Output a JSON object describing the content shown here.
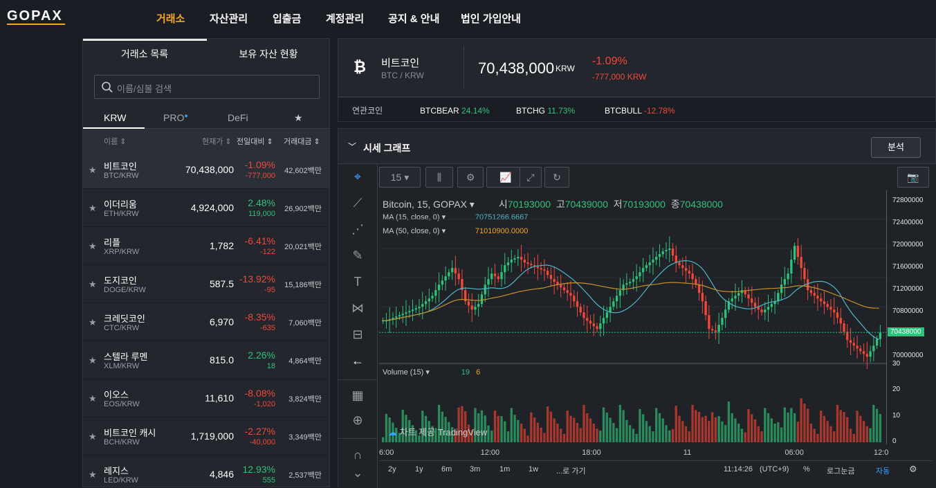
{
  "brand": "GOPAX",
  "nav": [
    "거래소",
    "자산관리",
    "입출금",
    "계정관리",
    "공지 & 안내",
    "법인 가입안내"
  ],
  "left": {
    "tabs": [
      "거래소 목록",
      "보유 자산 현황"
    ],
    "search_placeholder": "이름/심볼 검색",
    "subtabs": [
      "KRW",
      "PRO",
      "DeFi"
    ],
    "headers": {
      "name": "이름",
      "price": "현재가",
      "change": "전일대비",
      "volume": "거래대금"
    },
    "rows": [
      {
        "name": "비트코인",
        "sym": "BTC/KRW",
        "price": "70,438,000",
        "pct": "-1.09%",
        "chg": "-777,000",
        "vol": "42,602백만",
        "dir": "down"
      },
      {
        "name": "이더리움",
        "sym": "ETH/KRW",
        "price": "4,924,000",
        "pct": "2.48%",
        "chg": "119,000",
        "vol": "26,902백만",
        "dir": "up"
      },
      {
        "name": "리플",
        "sym": "XRP/KRW",
        "price": "1,782",
        "pct": "-6.41%",
        "chg": "-122",
        "vol": "20,021백만",
        "dir": "down"
      },
      {
        "name": "도지코인",
        "sym": "DOGE/KRW",
        "price": "587.5",
        "pct": "-13.92%",
        "chg": "-95",
        "vol": "15,186백만",
        "dir": "down"
      },
      {
        "name": "크레딧코인",
        "sym": "CTC/KRW",
        "price": "6,970",
        "pct": "-8.35%",
        "chg": "-635",
        "vol": "7,060백만",
        "dir": "down"
      },
      {
        "name": "스텔라 루멘",
        "sym": "XLM/KRW",
        "price": "815.0",
        "pct": "2.26%",
        "chg": "18",
        "vol": "4,864백만",
        "dir": "up"
      },
      {
        "name": "이오스",
        "sym": "EOS/KRW",
        "price": "11,610",
        "pct": "-8.08%",
        "chg": "-1,020",
        "vol": "3,824백만",
        "dir": "down"
      },
      {
        "name": "비트코인 캐시",
        "sym": "BCH/KRW",
        "price": "1,719,000",
        "pct": "-2.27%",
        "chg": "-40,000",
        "vol": "3,349백만",
        "dir": "down"
      },
      {
        "name": "레지스",
        "sym": "LED/KRW",
        "price": "4,846",
        "pct": "12.93%",
        "chg": "555",
        "vol": "2,537백만",
        "dir": "up"
      }
    ]
  },
  "header": {
    "name": "비트코인",
    "pair": "BTC / KRW",
    "price": "70,438,000",
    "currency": "KRW",
    "pct": "-1.09%",
    "change": "-777,000 KRW"
  },
  "related": {
    "label": "연관코인",
    "items": [
      {
        "name": "BTCBEAR",
        "pct": "24.14%",
        "dir": "up"
      },
      {
        "name": "BTCHG",
        "pct": "11.73%",
        "dir": "up"
      },
      {
        "name": "BTCBULL",
        "pct": "-12.78%",
        "dir": "down"
      }
    ]
  },
  "chart_panel": {
    "title": "시세 그래프",
    "analysis_button": "분석"
  },
  "toolbar": {
    "interval": "15"
  },
  "legend": {
    "main": "Bitcoin, 15, GOPAX",
    "o_label": "시",
    "o": "70193000",
    "h_label": "고",
    "h": "70439000",
    "l_label": "저",
    "l": "70193000",
    "c_label": "종",
    "c": "70438000",
    "ma15_label": "MA (15, close, 0)",
    "ma15_val": "70751266.6667",
    "ma50_label": "MA (50, close, 0)",
    "ma50_val": "71010900.0000",
    "vol_label": "Volume (15)",
    "vol_v1": "19",
    "vol_v2": "6"
  },
  "watermark": "차트 제공 TradingView",
  "bottombar": {
    "ranges": [
      "2y",
      "1y",
      "6m",
      "3m",
      "1m",
      "1w",
      "...로 가기"
    ],
    "time": "11:14:26",
    "tz": "(UTC+9)",
    "pct": "%",
    "log": "로그눈금",
    "auto": "자동"
  },
  "colors": {
    "accent": "#f5a623",
    "up": "#2fc27a",
    "down": "#f2483a",
    "ma15": "#4fb8c9",
    "ma50": "#c8922a"
  },
  "chart_data": {
    "type": "candlestick",
    "price_axis_ticks": [
      "72800000",
      "72400000",
      "72000000",
      "71600000",
      "71200000",
      "70800000",
      "70400000",
      "70000000"
    ],
    "price_ylim": [
      69880000,
      73000000
    ],
    "volume_axis_ticks": [
      "30",
      "20",
      "10",
      "0"
    ],
    "volume_ylim": [
      0,
      30
    ],
    "time_ticks": [
      "6:00",
      "12:00",
      "18:00",
      "11",
      "06:00",
      "12:0"
    ],
    "last_price": "70438000",
    "closes": [
      70650000,
      70700000,
      70750000,
      70800000,
      70850000,
      70900000,
      71000000,
      71100000,
      71300000,
      71450000,
      71600000,
      71400000,
      71000000,
      70850000,
      70950000,
      71300000,
      71500000,
      71400000,
      71650000,
      71750000,
      71800000,
      71700000,
      71650000,
      71600000,
      71550000,
      71400000,
      71300000,
      71200000,
      71100000,
      70900000,
      70700000,
      70600000,
      70500000,
      70700000,
      70900000,
      71100000,
      71300000,
      71350000,
      71450000,
      71600000,
      71700000,
      71800000,
      71900000,
      71950000,
      71700000,
      71600000,
      71500000,
      71300000,
      71000000,
      70500000,
      70450000,
      70700000,
      71000000,
      71100000,
      71200000,
      71050000,
      70900000,
      70800000,
      70900000,
      71000000,
      71300000,
      71500000,
      72000000,
      71600000,
      71200000,
      71100000,
      71000000,
      70900000,
      70800000,
      70600000,
      70300000,
      70200000,
      70100000,
      70000000,
      70200000,
      70438000
    ]
  }
}
